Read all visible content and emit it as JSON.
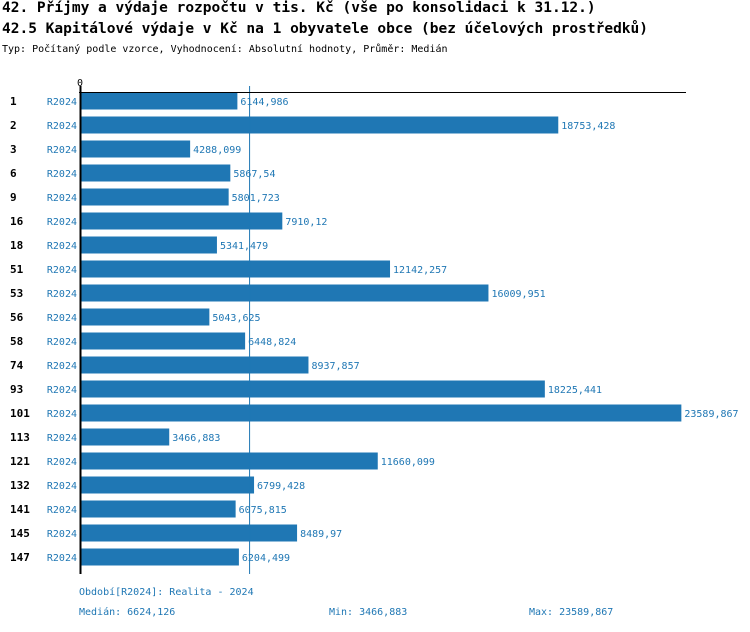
{
  "header": {
    "title": "42. Příjmy a výdaje rozpočtu v tis. Kč (vše po konsolidaci k 31.12.)",
    "subtitle": "42.5 Kapitálové výdaje v Kč na 1 obyvatele obce (bez účelových prostředků)",
    "type_line": "Typ: Počítaný podle vzorce, Vyhodnocení: Absolutní hodnoty, Průměr: Medián"
  },
  "chart_data": {
    "type": "bar",
    "orientation": "horizontal",
    "axis_zero_label": "0",
    "series_label": "R2024",
    "categories": [
      "1",
      "2",
      "3",
      "6",
      "9",
      "16",
      "18",
      "51",
      "53",
      "56",
      "58",
      "74",
      "93",
      "101",
      "113",
      "121",
      "132",
      "141",
      "145",
      "147"
    ],
    "values": [
      6144.986,
      18753.428,
      4288.099,
      5867.54,
      5801.723,
      7910.12,
      5341.479,
      12142.257,
      16009.951,
      5043.625,
      6448.824,
      8937.857,
      18225.441,
      23589.867,
      3466.883,
      11660.099,
      6799.428,
      6075.815,
      8489.97,
      6204.499
    ],
    "value_labels": [
      "6144,986",
      "18753,428",
      "4288,099",
      "5867,54",
      "5801,723",
      "7910,12",
      "5341,479",
      "12142,257",
      "16009,951",
      "5043,625",
      "6448,824",
      "8937,857",
      "18225,441",
      "23589,867",
      "3466,883",
      "11660,099",
      "6799,428",
      "6075,815",
      "8489,97",
      "6204,499"
    ],
    "median": 6624.126,
    "bar_color": "#1f77b4"
  },
  "footer": {
    "period": "Období[R2024]: Realita - 2024",
    "median": "Medián: 6624,126",
    "min": "Min: 3466,883",
    "max": "Max: 23589,867"
  }
}
